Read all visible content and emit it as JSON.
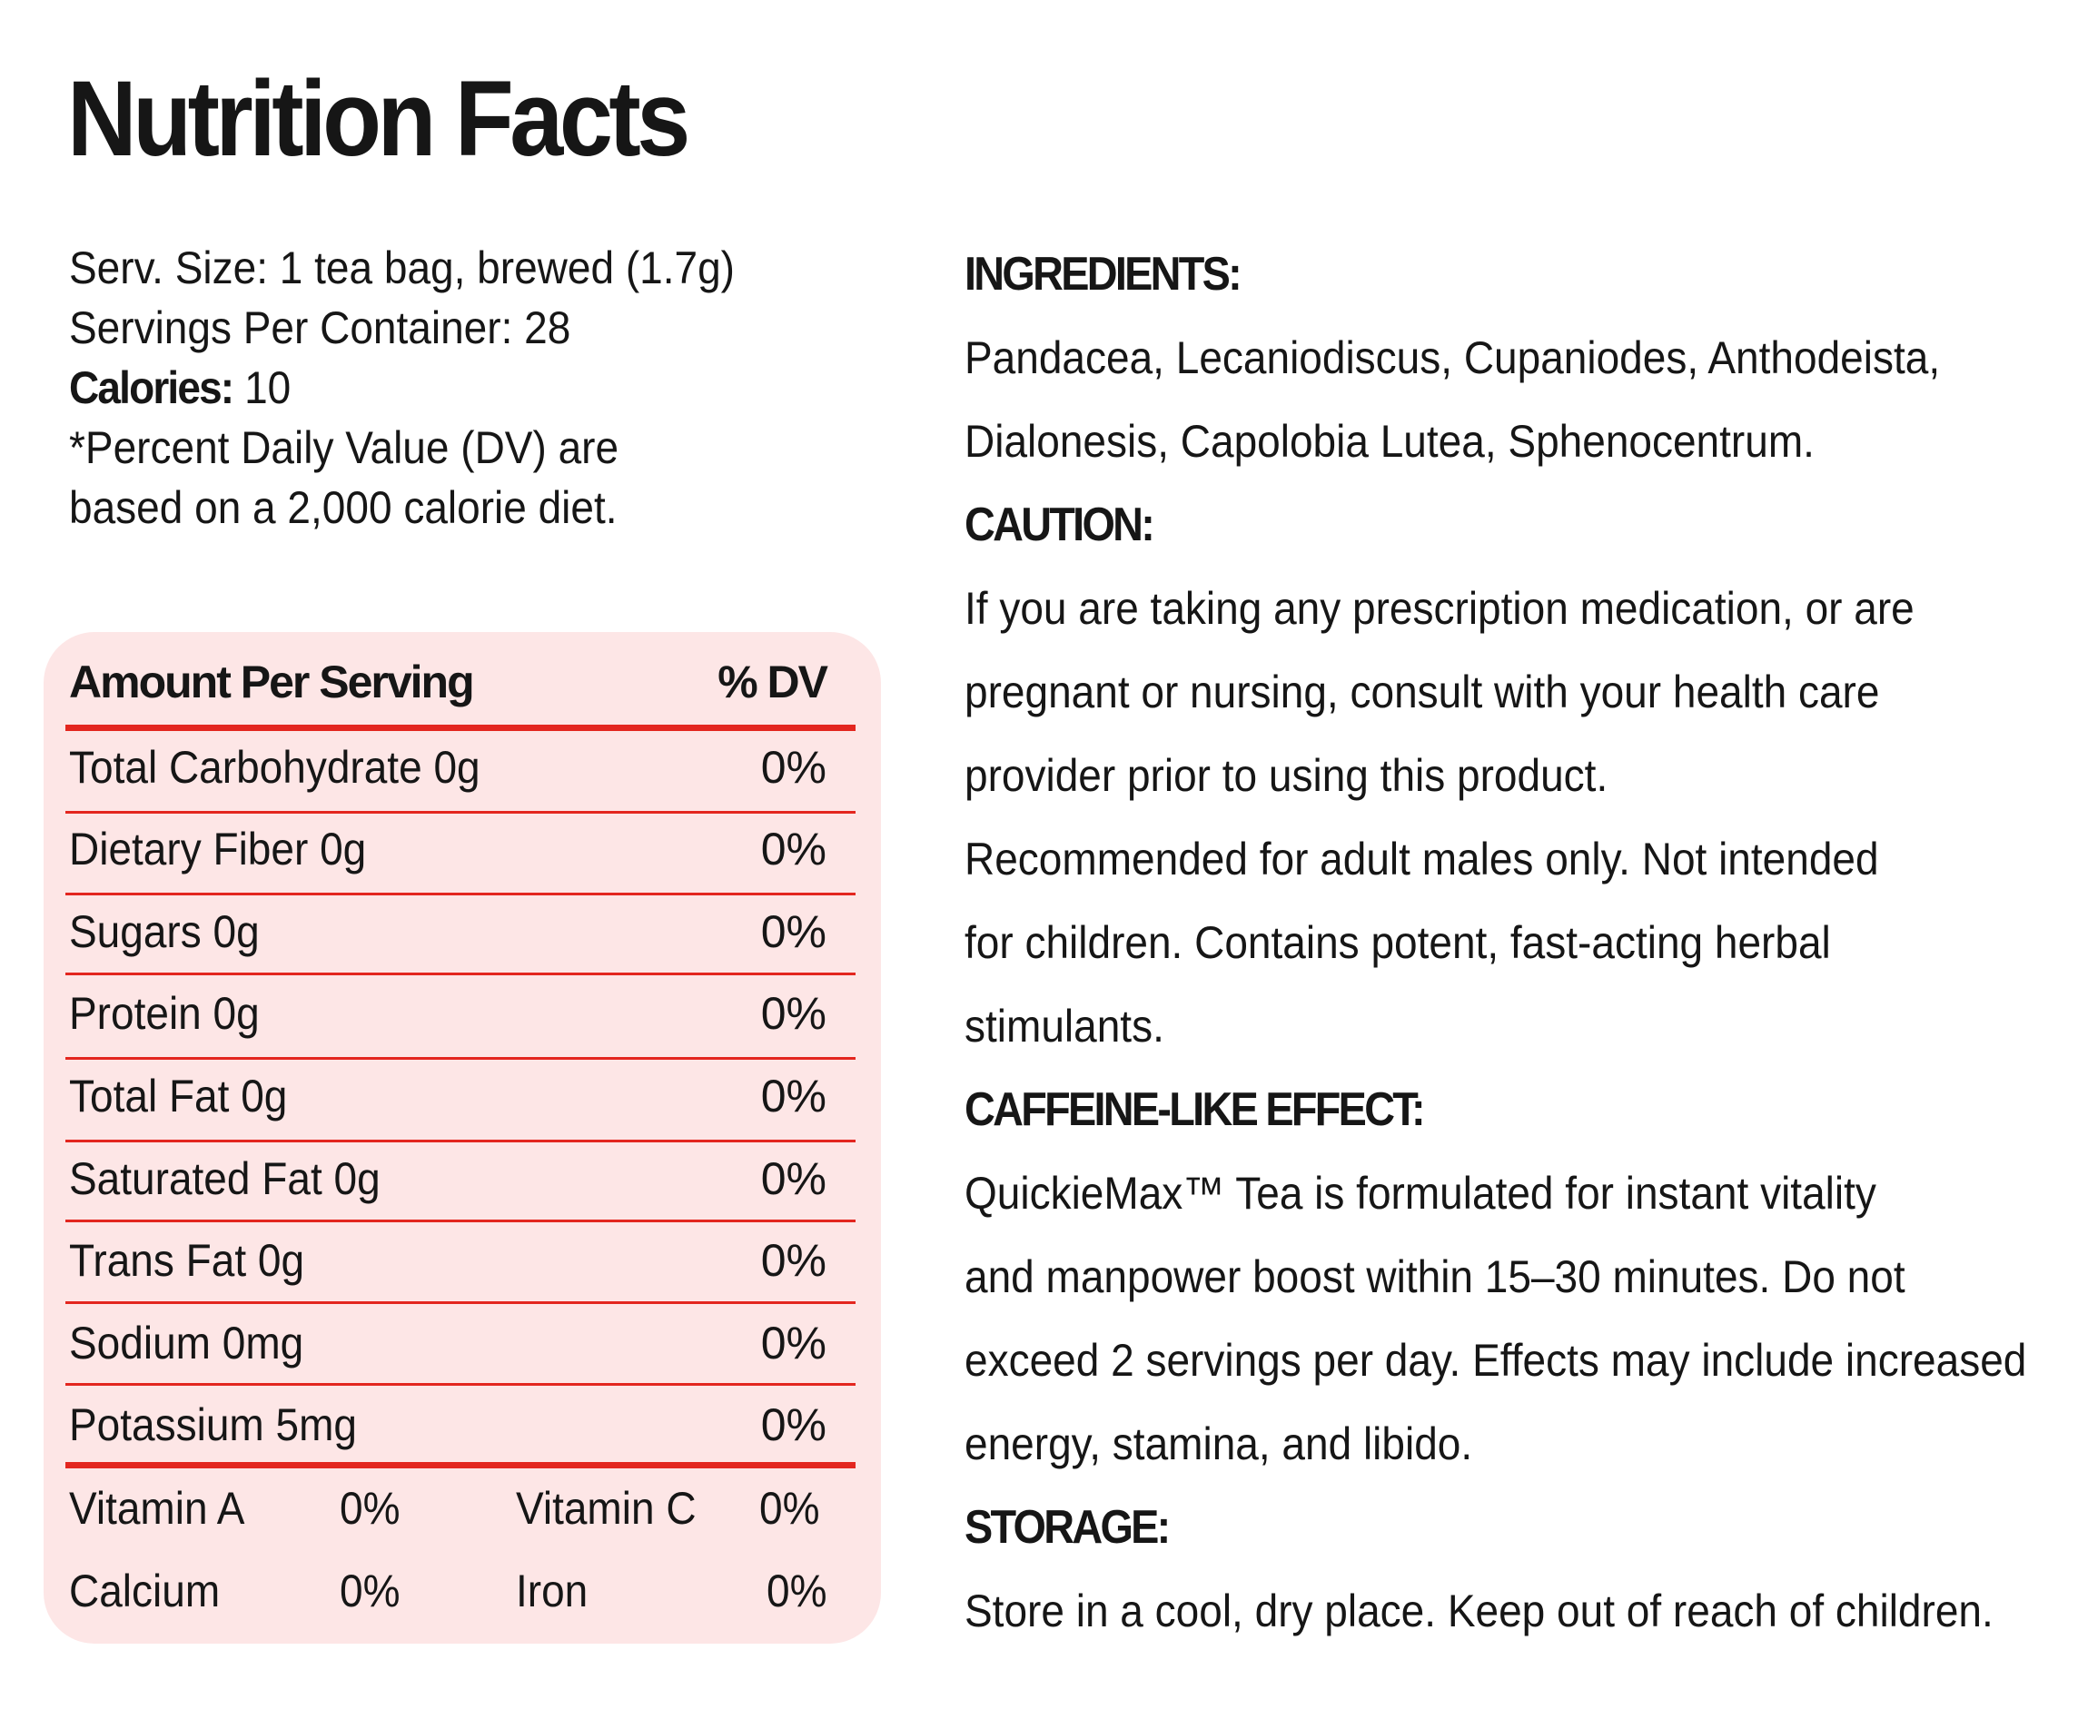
{
  "title": "Nutrition Facts",
  "serving": {
    "size": "Serv. Size: 1 tea bag, brewed (1.7g)",
    "servings_per_container": "Servings Per Container: 28",
    "calories_label": "Calories:",
    "calories_value": " 10",
    "dv_note_line1": "*Percent Daily Value (DV) are",
    "dv_note_line2": "based on a 2,000 calorie diet."
  },
  "table": {
    "header_label": "Amount Per Serving",
    "header_dv": "% DV",
    "rows": [
      {
        "label": "Total Carbohydrate 0g",
        "dv": "0%"
      },
      {
        "label": "Dietary Fiber 0g",
        "dv": "0%"
      },
      {
        "label": "Sugars 0g",
        "dv": "0%"
      },
      {
        "label": "Protein 0g",
        "dv": "0%"
      },
      {
        "label": "Total Fat 0g",
        "dv": "0%"
      },
      {
        "label": "Saturated Fat 0g",
        "dv": "0%"
      },
      {
        "label": "Trans Fat 0g",
        "dv": "0%"
      },
      {
        "label": "Sodium 0mg",
        "dv": "0%"
      },
      {
        "label": "Potassium 5mg",
        "dv": "0%"
      }
    ],
    "vitamins": [
      {
        "label": "Vitamin A",
        "dv": "0%",
        "label2": "Vitamin C",
        "dv2": "0%"
      },
      {
        "label": "Calcium",
        "dv": "0%",
        "label2": "Iron",
        "dv2": "0%"
      }
    ],
    "rule_color": "#e3261f",
    "panel_color": "#fde6e6"
  },
  "sections": {
    "ingredients": {
      "heading": "INGREDIENTS:",
      "lines": [
        "Pandacea, Lecaniodiscus, Cupaniodes, Anthodeista,",
        "Dialonesis, Capolobia Lutea, Sphenocentrum."
      ]
    },
    "caution": {
      "heading": "CAUTION:",
      "lines": [
        "If you are taking any prescription medication, or are",
        "pregnant or nursing, consult with your health care",
        "provider prior to using this product.",
        "Recommended for adult males only. Not intended",
        "for children. Contains potent, fast-acting herbal",
        "stimulants."
      ]
    },
    "caffeine": {
      "heading": "CAFFEINE-LIKE EFFECT:",
      "lines": [
        "QuickieMax™ Tea is formulated for instant vitality",
        "and manpower boost within 15–30 minutes. Do not",
        "exceed 2 servings per day. Effects may include increased",
        "energy, stamina, and libido."
      ]
    },
    "storage": {
      "heading": "STORAGE:",
      "lines": [
        "Store in a cool, dry place. Keep out of reach of children."
      ]
    }
  }
}
